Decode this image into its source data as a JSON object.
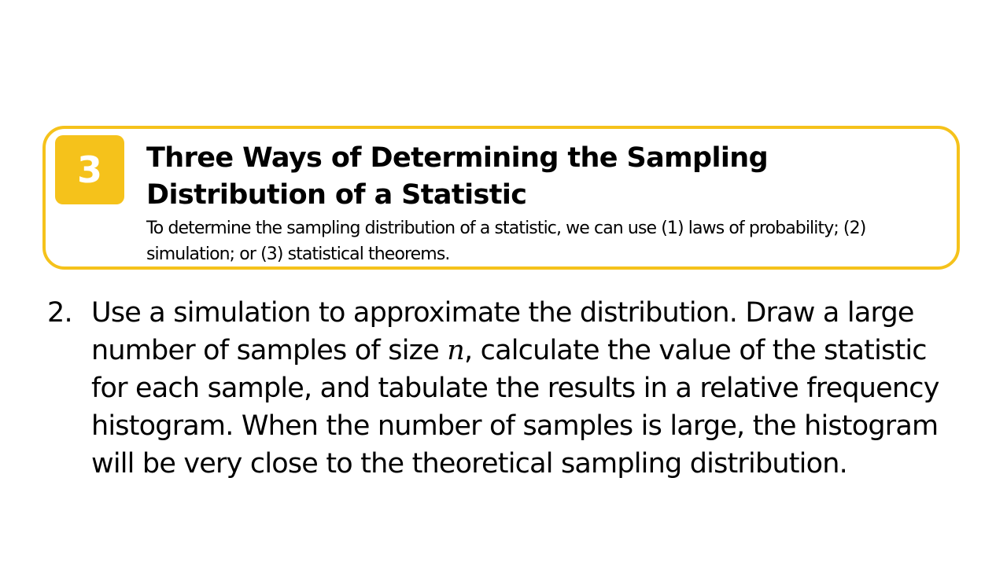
{
  "callout": {
    "badge_number": "3",
    "title": "Three Ways of Determining the Sampling Distribution of a Statistic",
    "description": "To determine the sampling distribution of a statistic, we can use (1) laws of probability; (2) simulation; or (3) statistical theorems.",
    "accent_color": "#f5c21b"
  },
  "list_item": {
    "number": "2.",
    "text_before": "Use a simulation to approximate the distribution. Draw a large number of samples of size ",
    "math_variable": "n",
    "text_after": ", calculate the value of the statistic for each sample, and tabulate the results in a relative frequency histogram. When the number of samples is large, the histogram will be very close to the theoretical sampling distribution."
  }
}
